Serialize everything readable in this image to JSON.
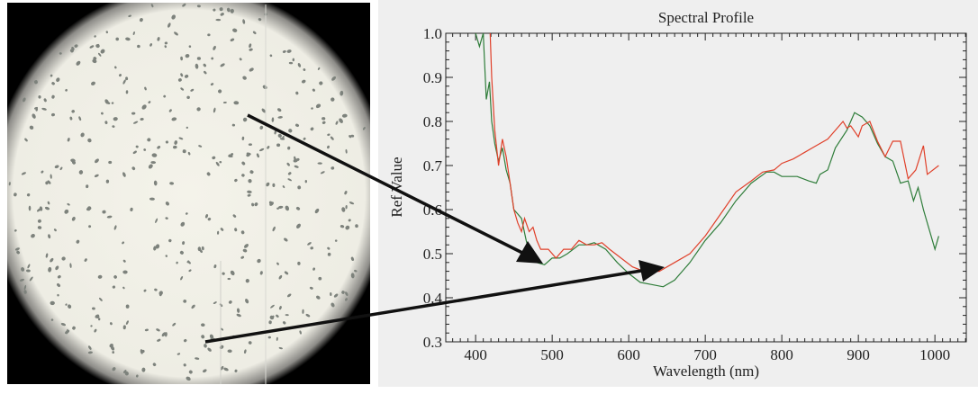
{
  "figure": {
    "micrograph": {
      "alt": "microscope field of view"
    },
    "colors": {
      "green_series": "#2f7d3a",
      "red_series": "#e0402a",
      "arrow": "#111111",
      "plot_bg": "#efefef"
    }
  },
  "chart_data": {
    "type": "line",
    "title": "Spectral Profile",
    "xlabel": "Wavelength (nm)",
    "ylabel": "Ref Value",
    "xlim": [
      361,
      1041
    ],
    "ylim": [
      0.3,
      1.0
    ],
    "xticks": [
      "400",
      "500",
      "600",
      "700",
      "800",
      "900",
      "1000"
    ],
    "yticks": [
      "0.3",
      "0.4",
      "0.5",
      "0.6",
      "0.7",
      "0.8",
      "0.9",
      "1.0"
    ],
    "grid": false,
    "series": [
      {
        "color": "#2f7d3a",
        "points": [
          [
            400,
            1.0
          ],
          [
            405,
            0.97
          ],
          [
            410,
            1.0
          ],
          [
            414,
            0.85
          ],
          [
            418,
            0.89
          ],
          [
            421,
            0.8
          ],
          [
            425,
            0.75
          ],
          [
            430,
            0.71
          ],
          [
            435,
            0.74
          ],
          [
            440,
            0.69
          ],
          [
            445,
            0.66
          ],
          [
            450,
            0.6
          ],
          [
            455,
            0.59
          ],
          [
            460,
            0.58
          ],
          [
            466,
            0.53
          ],
          [
            472,
            0.49
          ],
          [
            480,
            0.48
          ],
          [
            490,
            0.475
          ],
          [
            500,
            0.49
          ],
          [
            510,
            0.49
          ],
          [
            520,
            0.5
          ],
          [
            535,
            0.52
          ],
          [
            545,
            0.52
          ],
          [
            555,
            0.525
          ],
          [
            570,
            0.51
          ],
          [
            585,
            0.48
          ],
          [
            600,
            0.455
          ],
          [
            615,
            0.435
          ],
          [
            630,
            0.43
          ],
          [
            645,
            0.425
          ],
          [
            660,
            0.44
          ],
          [
            680,
            0.48
          ],
          [
            700,
            0.53
          ],
          [
            720,
            0.57
          ],
          [
            740,
            0.62
          ],
          [
            760,
            0.66
          ],
          [
            780,
            0.685
          ],
          [
            790,
            0.685
          ],
          [
            800,
            0.675
          ],
          [
            820,
            0.675
          ],
          [
            835,
            0.665
          ],
          [
            845,
            0.66
          ],
          [
            850,
            0.68
          ],
          [
            860,
            0.69
          ],
          [
            870,
            0.74
          ],
          [
            885,
            0.78
          ],
          [
            895,
            0.82
          ],
          [
            905,
            0.81
          ],
          [
            915,
            0.79
          ],
          [
            925,
            0.75
          ],
          [
            935,
            0.72
          ],
          [
            945,
            0.71
          ],
          [
            955,
            0.66
          ],
          [
            965,
            0.665
          ],
          [
            972,
            0.62
          ],
          [
            978,
            0.65
          ],
          [
            985,
            0.6
          ],
          [
            1000,
            0.51
          ],
          [
            1005,
            0.54
          ]
        ]
      },
      {
        "color": "#e0402a",
        "points": [
          [
            419,
            1.0
          ],
          [
            421,
            0.9
          ],
          [
            425,
            0.78
          ],
          [
            430,
            0.7
          ],
          [
            435,
            0.76
          ],
          [
            440,
            0.72
          ],
          [
            445,
            0.66
          ],
          [
            450,
            0.6
          ],
          [
            455,
            0.57
          ],
          [
            460,
            0.55
          ],
          [
            464,
            0.58
          ],
          [
            470,
            0.55
          ],
          [
            475,
            0.56
          ],
          [
            480,
            0.53
          ],
          [
            485,
            0.51
          ],
          [
            495,
            0.51
          ],
          [
            505,
            0.49
          ],
          [
            515,
            0.51
          ],
          [
            525,
            0.51
          ],
          [
            535,
            0.53
          ],
          [
            545,
            0.52
          ],
          [
            555,
            0.52
          ],
          [
            565,
            0.525
          ],
          [
            575,
            0.51
          ],
          [
            590,
            0.49
          ],
          [
            605,
            0.47
          ],
          [
            620,
            0.46
          ],
          [
            640,
            0.46
          ],
          [
            660,
            0.48
          ],
          [
            680,
            0.5
          ],
          [
            700,
            0.54
          ],
          [
            720,
            0.59
          ],
          [
            740,
            0.64
          ],
          [
            760,
            0.665
          ],
          [
            775,
            0.685
          ],
          [
            790,
            0.69
          ],
          [
            800,
            0.705
          ],
          [
            815,
            0.715
          ],
          [
            830,
            0.73
          ],
          [
            845,
            0.745
          ],
          [
            860,
            0.76
          ],
          [
            875,
            0.79
          ],
          [
            880,
            0.8
          ],
          [
            885,
            0.785
          ],
          [
            890,
            0.79
          ],
          [
            900,
            0.765
          ],
          [
            905,
            0.79
          ],
          [
            915,
            0.8
          ],
          [
            925,
            0.755
          ],
          [
            935,
            0.72
          ],
          [
            945,
            0.755
          ],
          [
            955,
            0.755
          ],
          [
            965,
            0.67
          ],
          [
            975,
            0.69
          ],
          [
            985,
            0.745
          ],
          [
            990,
            0.68
          ],
          [
            1005,
            0.7
          ]
        ]
      }
    ]
  }
}
